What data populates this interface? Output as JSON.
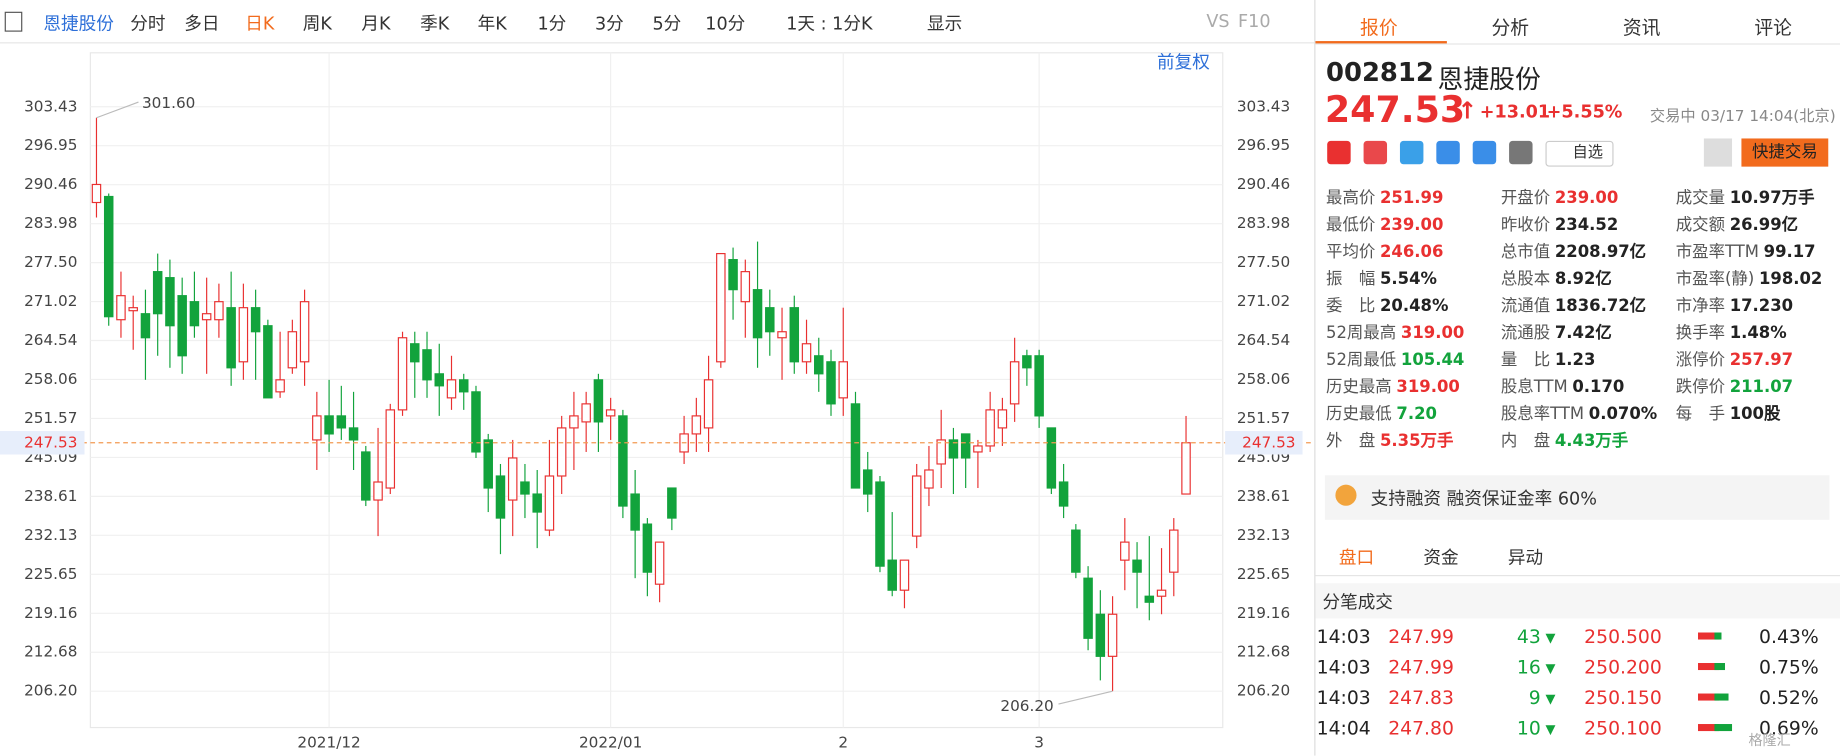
{
  "toolbar": {
    "stock": "恩捷股份",
    "periods": [
      "分时",
      "多日",
      "日K",
      "周K",
      "月K",
      "季K",
      "年K",
      "1分",
      "3分",
      "5分",
      "10分"
    ],
    "active": 2,
    "range": "1天 : 1分K",
    "display": "显示",
    "vs": "VS",
    "f10": "F10"
  },
  "chart_data": {
    "type": "candlestick",
    "adjust": "前复权",
    "categories": [
      null,
      null,
      null,
      null,
      null,
      null,
      null,
      null,
      null,
      null,
      null,
      null,
      null,
      null,
      null,
      null,
      null,
      null,
      null,
      "2021/12",
      null,
      null,
      null,
      null,
      null,
      null,
      null,
      null,
      null,
      null,
      null,
      null,
      null,
      null,
      null,
      null,
      null,
      null,
      null,
      null,
      null,
      null,
      "2022/01",
      null,
      null,
      null,
      null,
      null,
      null,
      null,
      null,
      null,
      null,
      null,
      null,
      null,
      null,
      null,
      null,
      null,
      null,
      "2",
      null,
      null,
      null,
      null,
      null,
      null,
      null,
      null,
      null,
      null,
      null,
      null,
      null,
      null,
      null,
      "3",
      null,
      null,
      null,
      null,
      null,
      null,
      null,
      null,
      null,
      null,
      null,
      null
    ],
    "open": [
      287.5,
      288.5,
      268,
      269.5,
      269,
      276,
      275,
      272,
      271,
      268,
      268,
      270,
      261,
      270,
      267,
      256,
      260,
      261,
      248,
      252,
      252,
      250,
      246,
      238,
      240,
      253,
      264,
      263,
      259,
      255,
      258,
      256,
      248,
      242,
      238,
      241,
      239,
      233,
      242,
      250,
      251,
      258,
      252,
      252,
      239,
      234,
      224,
      240,
      246,
      249,
      250,
      261,
      278,
      271,
      273,
      270,
      265,
      270,
      261,
      262,
      261,
      255,
      254,
      243,
      241,
      228,
      223,
      232,
      240,
      244,
      248,
      249,
      246,
      247,
      250,
      254,
      262,
      262,
      250,
      241,
      233,
      225,
      219,
      212,
      228,
      228,
      222,
      222,
      226,
      239
    ],
    "high": [
      301.6,
      289,
      276,
      272,
      273,
      279,
      278,
      275,
      276,
      275,
      274,
      276,
      274,
      273,
      268,
      266,
      268,
      273,
      256,
      258,
      257,
      256,
      247,
      250,
      254,
      266,
      266,
      266,
      264,
      262,
      259,
      257,
      249,
      244,
      248,
      244,
      243,
      248,
      252,
      256,
      256,
      259,
      255,
      253,
      243,
      235,
      231,
      240,
      252,
      255,
      262,
      279,
      280,
      278,
      281,
      273,
      270,
      272,
      268,
      265,
      263,
      270,
      256,
      246,
      242,
      236,
      228,
      244,
      247,
      253,
      250,
      249,
      248,
      256,
      255,
      265,
      263,
      263,
      250,
      244,
      234,
      227,
      223,
      222,
      235,
      231,
      232,
      230,
      235,
      251.99
    ],
    "low": [
      285,
      267,
      265,
      263,
      258,
      262,
      260,
      259,
      265,
      259,
      265,
      257,
      258,
      258,
      255,
      255,
      259,
      257,
      243,
      246,
      248,
      243,
      237,
      232,
      239,
      252,
      255,
      255,
      252,
      253,
      253,
      245,
      236,
      229,
      232,
      235,
      230,
      232,
      239,
      243,
      246,
      246,
      248,
      235,
      225,
      222,
      221,
      233,
      244,
      246,
      246,
      260,
      268,
      265,
      260,
      262,
      258,
      259,
      259,
      256,
      252,
      252,
      240,
      236,
      226,
      222,
      220,
      230,
      237,
      240,
      239,
      240,
      240,
      246,
      247,
      251,
      257,
      250,
      239,
      235,
      225,
      213,
      208,
      206.2,
      223,
      220,
      218,
      219,
      222,
      239
    ],
    "close": [
      290.5,
      268.5,
      272,
      270,
      265,
      269,
      267,
      262,
      267,
      269,
      271,
      260,
      270,
      266,
      255,
      258,
      266,
      271,
      252,
      249,
      250,
      248,
      238,
      241,
      253,
      265,
      261,
      258,
      257,
      258,
      256,
      246,
      240,
      235,
      245,
      239,
      236,
      242,
      250,
      252,
      254,
      251,
      253,
      237,
      233,
      226,
      231,
      235,
      249,
      252,
      258,
      279,
      273,
      276,
      265,
      266,
      266,
      261,
      264,
      259,
      254,
      261,
      240,
      239,
      227,
      223,
      228,
      242,
      243,
      248,
      245,
      245,
      247,
      253,
      253,
      261,
      260,
      252,
      240,
      237,
      226,
      215,
      212,
      219,
      231,
      226,
      221,
      223,
      233,
      247.53
    ],
    "up_color": "#e93030",
    "down_color": "#12a33c",
    "ylim": [
      200.15,
      308.5
    ],
    "yticks": [
      {
        "value": 206.2,
        "label": "206.20"
      },
      212.68,
      219.16,
      225.65,
      232.13,
      238.61,
      245.09,
      251.57,
      258.06,
      264.54,
      271.02,
      {
        "value": 277.5,
        "label": "277.50"
      },
      283.98,
      290.46,
      296.95,
      303.43
    ],
    "grid": true,
    "last_price": 247.53,
    "max_mark": {
      "value": 301.6,
      "label": "301.60"
    },
    "min_mark": {
      "value": 206.2,
      "label": "206.20"
    }
  },
  "quote": {
    "tabs": [
      "报价",
      "分析",
      "资讯",
      "评论"
    ],
    "code": "002812",
    "name": "恩捷股份",
    "price": "247.53",
    "change": "+13.01",
    "change_pct": "+5.55%",
    "status": "交易中 03/17 14:04(北京)",
    "watch": "自选",
    "trade": "快捷交易",
    "stats": [
      [
        {
          "label": "最高价",
          "value": "251.99",
          "tone": "up"
        },
        {
          "label": "最低价",
          "value": "239.00",
          "tone": "up"
        },
        {
          "label": "平均价",
          "value": "246.06",
          "tone": "up"
        },
        {
          "label": "振　幅",
          "value": "5.54%",
          "tone": "flat"
        },
        {
          "label": "委　比",
          "value": "20.48%",
          "tone": "flat"
        },
        {
          "label": "52周最高",
          "value": "319.00",
          "tone": "up"
        },
        {
          "label": "52周最低",
          "value": "105.44",
          "tone": "down"
        },
        {
          "label": "历史最高",
          "value": "319.00",
          "tone": "up"
        },
        {
          "label": "历史最低",
          "value": "7.20",
          "tone": "down"
        },
        {
          "label": "外　盘",
          "value": "5.35万手",
          "tone": "up"
        }
      ],
      [
        {
          "label": "开盘价",
          "value": "239.00",
          "tone": "up"
        },
        {
          "label": "昨收价",
          "value": "234.52",
          "tone": "flat"
        },
        {
          "label": "总市值",
          "value": "2208.97亿",
          "tone": "flat"
        },
        {
          "label": "总股本",
          "value": "8.92亿",
          "tone": "flat"
        },
        {
          "label": "流通值",
          "value": "1836.72亿",
          "tone": "flat"
        },
        {
          "label": "流通股",
          "value": "7.42亿",
          "tone": "flat"
        },
        {
          "label": "量　比",
          "value": "1.23",
          "tone": "flat"
        },
        {
          "label": "股息TTM",
          "value": "0.170",
          "tone": "flat"
        },
        {
          "label": "股息率TTM",
          "value": "0.070%",
          "tone": "flat"
        },
        {
          "label": "内　盘",
          "value": "4.43万手",
          "tone": "down"
        }
      ],
      [
        {
          "label": "成交量",
          "value": "10.97万手",
          "tone": "flat"
        },
        {
          "label": "成交额",
          "value": "26.99亿",
          "tone": "flat"
        },
        {
          "label": "市盈率TTM",
          "value": "99.17",
          "tone": "flat"
        },
        {
          "label": "市盈率(静)",
          "value": "198.02",
          "tone": "flat"
        },
        {
          "label": "市净率",
          "value": "17.230",
          "tone": "flat"
        },
        {
          "label": "换手率",
          "value": "1.48%",
          "tone": "flat"
        },
        {
          "label": "涨停价",
          "value": "257.97",
          "tone": "up"
        },
        {
          "label": "跌停价",
          "value": "211.07",
          "tone": "down"
        },
        {
          "label": "每　手",
          "value": "100股",
          "tone": "flat"
        }
      ]
    ],
    "margin": "支持融资 融资保证金率 60%",
    "sub_tabs": [
      "盘口",
      "资金",
      "异动"
    ],
    "ticks_title": "分笔成交",
    "trades": [
      {
        "time": "14:03",
        "price": "247.99",
        "volume": "43",
        "bid": "250.500",
        "pct": "0.43%"
      },
      {
        "time": "14:03",
        "price": "247.99",
        "volume": "16",
        "bid": "250.200",
        "pct": "0.75%"
      },
      {
        "time": "14:03",
        "price": "247.83",
        "volume": "9",
        "bid": "250.150",
        "pct": "0.52%"
      },
      {
        "time": "14:04",
        "price": "247.80",
        "volume": "10",
        "bid": "250.100",
        "pct": "0.69%"
      }
    ]
  },
  "watermark": "格隆汇"
}
